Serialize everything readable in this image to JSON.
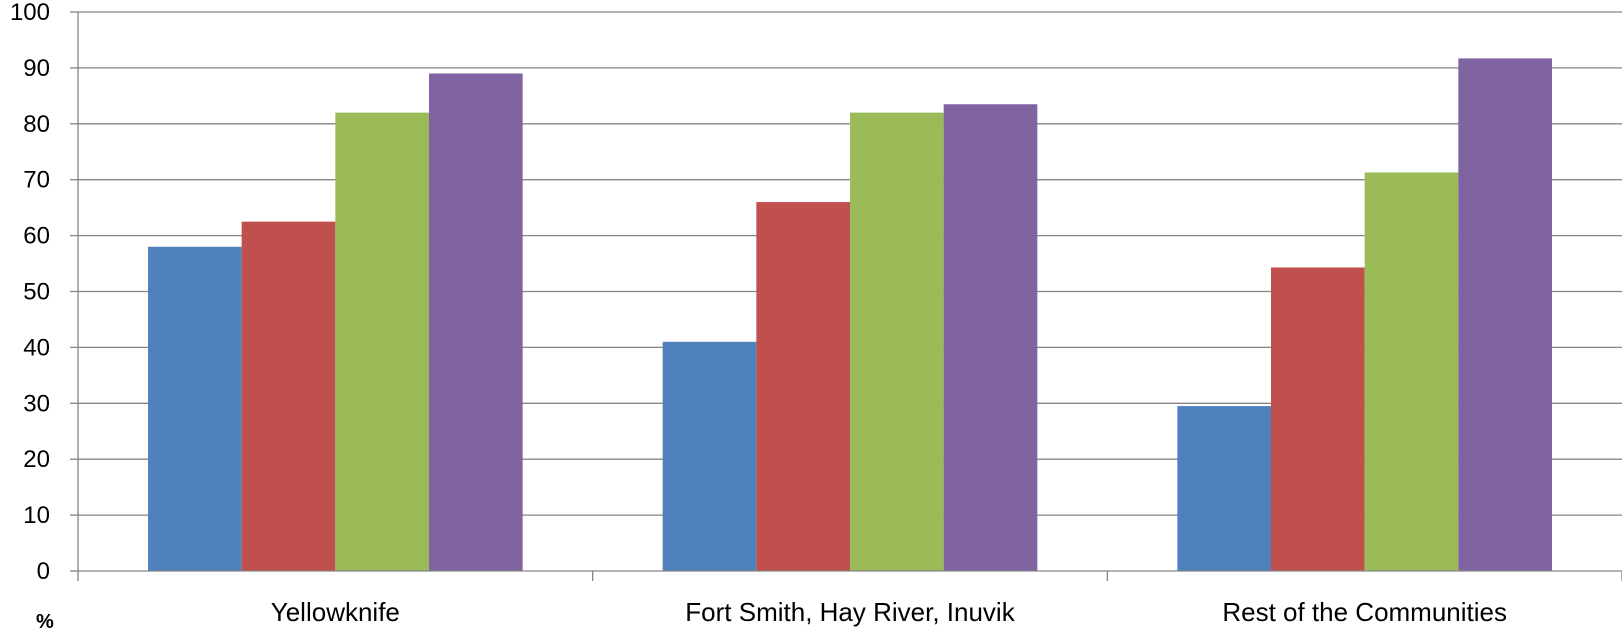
{
  "chart_data": {
    "type": "bar",
    "categories": [
      "Yellowknife",
      "Fort Smith, Hay River, Inuvik",
      "Rest of the Communities"
    ],
    "series": [
      {
        "values": [
          58,
          41,
          29.5
        ],
        "color": "#4F81BD"
      },
      {
        "values": [
          62.5,
          66,
          54.3
        ],
        "color": "#C0504D"
      },
      {
        "values": [
          82,
          82,
          71.3
        ],
        "color": "#9BBB59"
      },
      {
        "values": [
          89,
          83.5,
          91.7
        ],
        "color": "#8064A2"
      }
    ],
    "ylim": [
      0,
      100
    ],
    "yticks": [
      "0",
      "10",
      "20",
      "30",
      "40",
      "50",
      "60",
      "70",
      "80",
      "90",
      "100"
    ],
    "unit_label": "%",
    "grid": true,
    "legend": "none",
    "title": "",
    "xlabel": "",
    "ylabel": ""
  }
}
